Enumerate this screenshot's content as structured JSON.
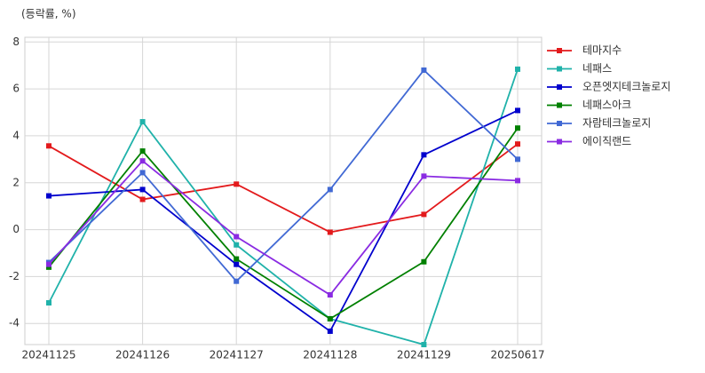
{
  "chart_data": {
    "type": "line",
    "y_label": "(등락률, %)",
    "categories": [
      "20241125",
      "20241126",
      "20241127",
      "20241128",
      "20241129",
      "20250617"
    ],
    "series": [
      {
        "name": "테마지수",
        "color": "#e31a1c",
        "values": [
          3.57,
          1.29,
          1.94,
          -0.11,
          0.65,
          3.65
        ]
      },
      {
        "name": "네패스",
        "color": "#20b2aa",
        "values": [
          -3.12,
          4.6,
          -0.65,
          -3.8,
          -4.9,
          6.84
        ]
      },
      {
        "name": "오픈엣지테크놀로지",
        "color": "#0000cd",
        "values": [
          1.44,
          1.71,
          -1.48,
          -4.33,
          3.19,
          5.08
        ]
      },
      {
        "name": "네패스아크",
        "color": "#008000",
        "values": [
          -1.6,
          3.35,
          -1.25,
          -3.8,
          -1.37,
          4.33
        ]
      },
      {
        "name": "자람테크놀로지",
        "color": "#4169d4",
        "values": [
          -1.4,
          2.43,
          -2.2,
          1.71,
          6.8,
          3.0
        ]
      },
      {
        "name": "에이직랜드",
        "color": "#8a2be2",
        "values": [
          -1.48,
          2.93,
          -0.3,
          -2.78,
          2.28,
          2.09
        ]
      }
    ],
    "ylim": [
      -4.9,
      8.2
    ],
    "yticks": [
      -4,
      -2,
      0,
      2,
      4,
      6,
      8
    ],
    "grid": true,
    "legend": "right"
  }
}
